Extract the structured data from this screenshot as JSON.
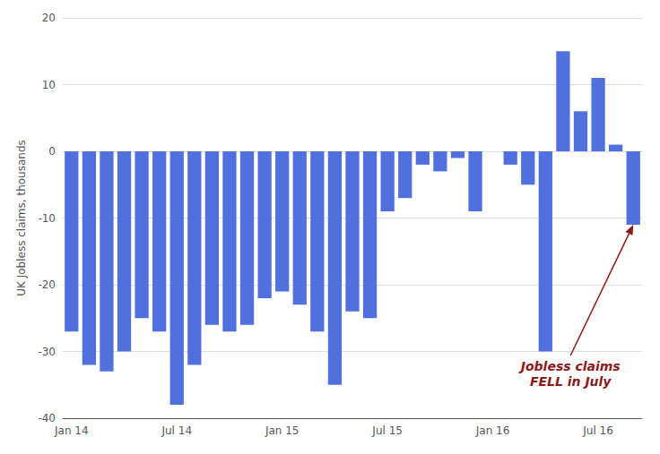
{
  "chart_data": {
    "type": "bar",
    "ylabel": "UK Jobless claims, thousands",
    "categories": [
      "Jan 14",
      null,
      null,
      null,
      null,
      null,
      "Jul 14",
      null,
      null,
      null,
      null,
      null,
      "Jan 15",
      null,
      null,
      null,
      null,
      null,
      "Jul 15",
      null,
      null,
      null,
      null,
      null,
      "Jan 16",
      null,
      null,
      null,
      null,
      null,
      "Jul 16",
      null,
      null
    ],
    "values": [
      -27,
      -32,
      -33,
      -30,
      -25,
      -27,
      -38,
      -32,
      -26,
      -27,
      -26,
      -22,
      -21,
      -23,
      -27,
      -35,
      -24,
      -25,
      -9,
      -7,
      -2,
      -3,
      -1,
      -9,
      0,
      -2,
      -5,
      -30,
      15,
      6,
      11,
      1,
      -11
    ],
    "ylim": [
      -40,
      20
    ],
    "yticks": [
      -40,
      -30,
      -20,
      -10,
      0,
      10,
      20
    ],
    "grid": true,
    "annotations": [
      "Jobless claims\nFELL in July"
    ]
  }
}
